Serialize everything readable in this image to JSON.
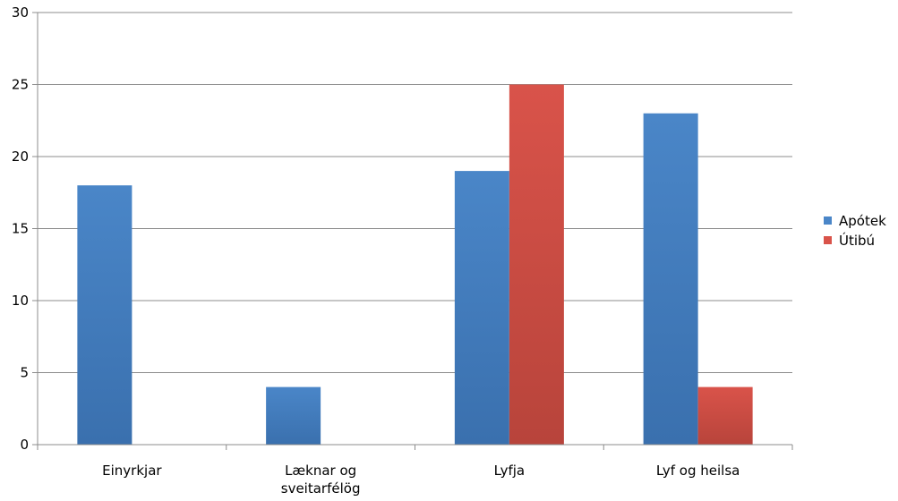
{
  "chart_data": {
    "type": "bar",
    "categories": [
      [
        "Einyrkjar"
      ],
      [
        "Læknar og",
        "sveitarfélög"
      ],
      [
        "Lyfja"
      ],
      [
        "Lyf og heilsa"
      ]
    ],
    "series": [
      {
        "name": "Apótek",
        "values": [
          18,
          4,
          19,
          23
        ],
        "color": "#4a86c8",
        "color_dark": "#3a70ae"
      },
      {
        "name": "Útibú",
        "values": [
          0,
          0,
          25,
          4
        ],
        "color": "#d9534a",
        "color_dark": "#b8443b"
      }
    ],
    "ylim": [
      0,
      30
    ],
    "yticks": [
      0,
      5,
      10,
      15,
      20,
      25,
      30
    ],
    "grid": true,
    "legend_position": "right"
  }
}
